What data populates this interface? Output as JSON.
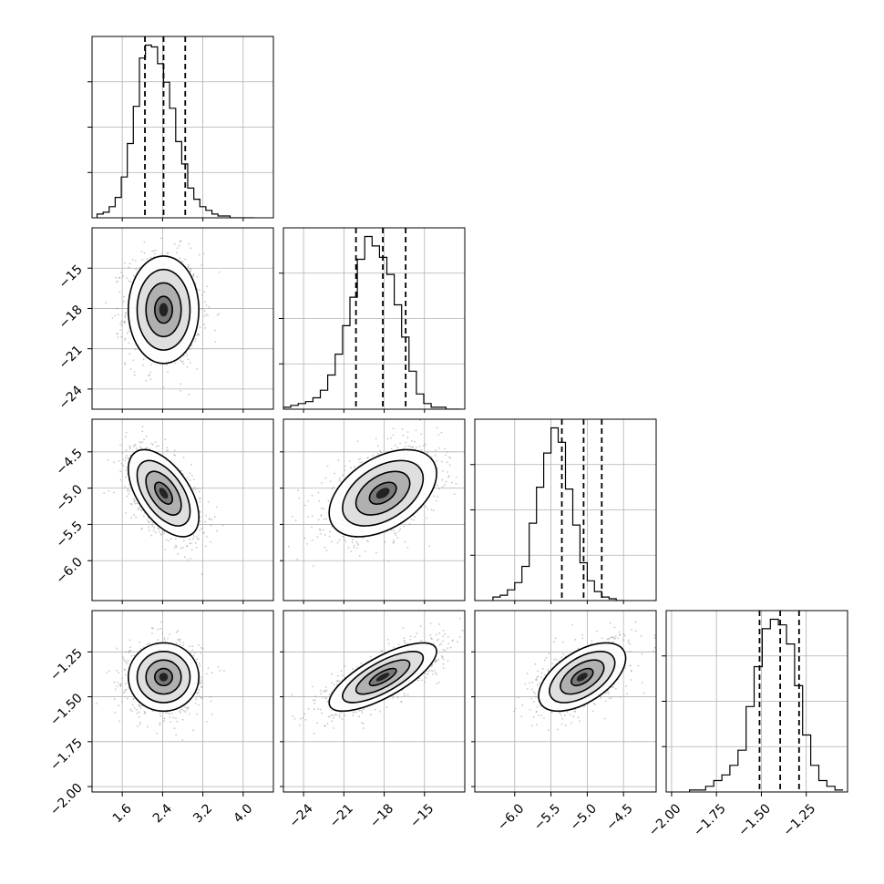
{
  "chart_data": {
    "type": "corner",
    "parameters": [
      {
        "range": [
          1.0,
          4.6
        ],
        "ticks": [
          1.6,
          2.4,
          3.2,
          4.0
        ],
        "tick_labels": [
          "1.6",
          "2.4",
          "3.2",
          "4.0"
        ],
        "quantiles": [
          2.05,
          2.42,
          2.85
        ],
        "hist_edges_start": 1.1,
        "hist_bin_width": 0.12,
        "hist_counts": [
          2,
          3,
          6,
          11,
          22,
          40,
          60,
          86,
          93,
          92,
          83,
          73,
          59,
          41,
          29,
          16,
          10,
          6,
          4,
          2,
          1,
          1,
          0,
          0,
          0,
          0
        ]
      },
      {
        "range": [
          -25.5,
          -12.0
        ],
        "ticks": [
          -24,
          -21,
          -18,
          -15
        ],
        "tick_labels": [
          "−24",
          "−21",
          "−18",
          "−15"
        ],
        "quantiles": [
          -20.1,
          -18.1,
          -16.4
        ],
        "hist_edges_start": -25.5,
        "hist_bin_width": 0.55,
        "hist_counts": [
          1,
          2,
          3,
          4,
          6,
          10,
          18,
          29,
          44,
          59,
          79,
          91,
          86,
          80,
          71,
          55,
          38,
          20,
          8,
          3,
          1,
          1,
          0,
          0
        ]
      },
      {
        "range": [
          -6.55,
          -4.05
        ],
        "ticks": [
          -6.0,
          -5.5,
          -5.0,
          -4.5
        ],
        "tick_labels": [
          "−6.0",
          "−5.5",
          "−5.0",
          "−4.5"
        ],
        "quantiles": [
          -5.35,
          -5.05,
          -4.8
        ],
        "hist_edges_start": -6.3,
        "hist_bin_width": 0.1,
        "hist_counts": [
          2,
          3,
          6,
          10,
          19,
          43,
          63,
          82,
          96,
          88,
          62,
          42,
          21,
          11,
          5,
          2,
          1,
          0
        ]
      },
      {
        "range": [
          -2.03,
          -1.02
        ],
        "ticks": [
          -2.0,
          -1.75,
          -1.5,
          -1.25
        ],
        "tick_labels": [
          "−2.00",
          "−1.75",
          "−1.50",
          "−1.25"
        ],
        "quantiles": [
          -1.51,
          -1.395,
          -1.29
        ],
        "hist_edges_start": -1.9,
        "hist_bin_width": 0.045,
        "hist_counts": [
          1,
          1,
          3,
          6,
          9,
          14,
          22,
          45,
          66,
          86,
          91,
          88,
          78,
          56,
          30,
          14,
          6,
          3,
          1
        ]
      }
    ],
    "pairs": [
      {
        "x": 0,
        "y": 1,
        "center": [
          2.42,
          -18.1
        ],
        "sd": [
          0.35,
          2.0
        ],
        "rho": 0.0
      },
      {
        "x": 0,
        "y": 2,
        "center": [
          2.42,
          -5.07
        ],
        "sd": [
          0.35,
          0.3
        ],
        "rho": -0.55
      },
      {
        "x": 1,
        "y": 2,
        "center": [
          -18.1,
          -5.07
        ],
        "sd": [
          2.0,
          0.3
        ],
        "rho": 0.45
      },
      {
        "x": 0,
        "y": 3,
        "center": [
          2.42,
          -1.39
        ],
        "sd": [
          0.35,
          0.095
        ],
        "rho": 0.0
      },
      {
        "x": 1,
        "y": 3,
        "center": [
          -18.1,
          -1.39
        ],
        "sd": [
          2.0,
          0.095
        ],
        "rho": 0.75
      },
      {
        "x": 2,
        "y": 3,
        "center": [
          -5.07,
          -1.39
        ],
        "sd": [
          0.3,
          0.095
        ],
        "rho": 0.55
      }
    ],
    "contour_levels_sigma": [
      0.5,
      1.0,
      1.5,
      2.0
    ],
    "colors": {
      "contour": "#000000",
      "points": "#9a9a9a",
      "density": "#000000",
      "grid": "#b0b0b0"
    }
  }
}
